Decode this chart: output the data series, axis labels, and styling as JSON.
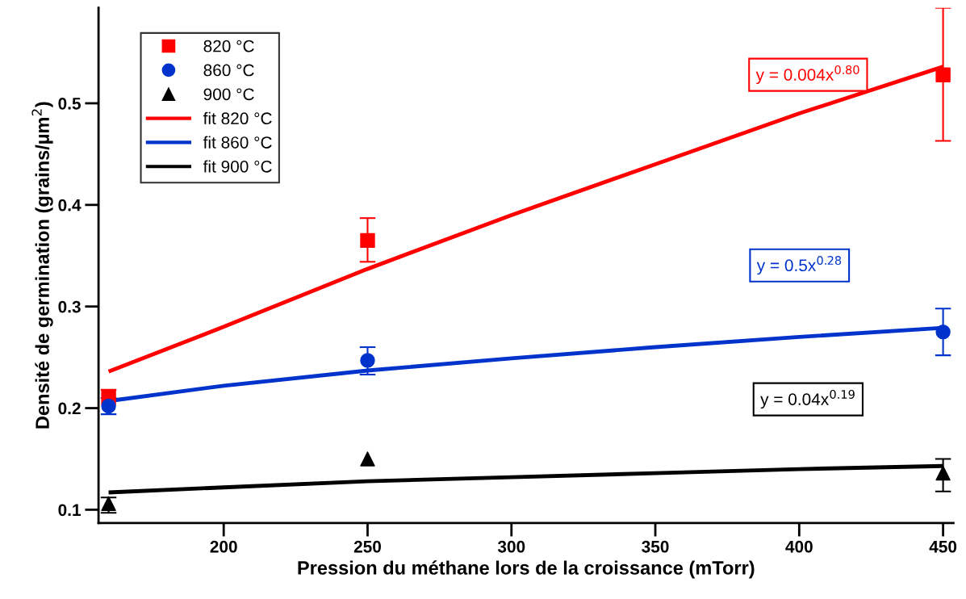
{
  "chart_data": {
    "type": "scatter",
    "xlabel": "Pression du méthane lors de la croissance (mTorr)",
    "ylabel": "Densité de germination (grains/µm$^{2}$)",
    "xlim": [
      156.5,
      453.6
    ],
    "ylim": [
      0.087,
      0.594
    ],
    "xticks": [
      200,
      250,
      300,
      350,
      400,
      450
    ],
    "yticks": [
      0.1,
      0.2,
      0.3,
      0.4,
      0.5
    ],
    "grid": false,
    "legend": "top left",
    "annotations": [
      "y = 0.004x$^{0.80}$",
      "y = 0.5x$^{0.28}$",
      "y = 0.04x$^{0.19}$"
    ],
    "series": [
      {
        "name": "820 °C",
        "marker": "square",
        "color": "#ff0000",
        "x": [
          160,
          250,
          450
        ],
        "values": [
          0.21,
          0.365,
          0.528
        ],
        "errors": [
          [
            0.21,
            0.218
          ],
          [
            0.344,
            0.387
          ],
          [
            0.463,
            0.594
          ]
        ]
      },
      {
        "name": "860 °C",
        "marker": "circle",
        "color": "#0033cc",
        "x": [
          160,
          250,
          450
        ],
        "values": [
          0.202,
          0.247,
          0.275
        ],
        "errors": [
          [
            0.194,
            0.21
          ],
          [
            0.233,
            0.26
          ],
          [
            0.252,
            0.298
          ]
        ]
      },
      {
        "name": "900 °C",
        "marker": "triangle",
        "color": "#000000",
        "x": [
          160,
          250,
          450
        ],
        "values": [
          0.106,
          0.15,
          0.136
        ],
        "errors": [
          [
            0.097,
            0.112
          ],
          null,
          [
            0.118,
            0.15
          ]
        ]
      },
      {
        "name": "fit 820 °C",
        "type": "line",
        "color": "#ff0000",
        "x": [
          160,
          200,
          250,
          300,
          350,
          400,
          450
        ],
        "values": [
          0.236,
          0.28,
          0.337,
          0.39,
          0.44,
          0.49,
          0.536
        ]
      },
      {
        "name": "fit 860 °C",
        "type": "line",
        "color": "#0033cc",
        "x": [
          160,
          200,
          250,
          300,
          350,
          400,
          450
        ],
        "values": [
          0.207,
          0.222,
          0.237,
          0.249,
          0.26,
          0.27,
          0.279
        ]
      },
      {
        "name": "fit 900 °C",
        "type": "line",
        "color": "#000000",
        "x": [
          160,
          200,
          250,
          300,
          350,
          400,
          450
        ],
        "values": [
          0.117,
          0.122,
          0.128,
          0.132,
          0.136,
          0.14,
          0.143
        ]
      }
    ]
  }
}
